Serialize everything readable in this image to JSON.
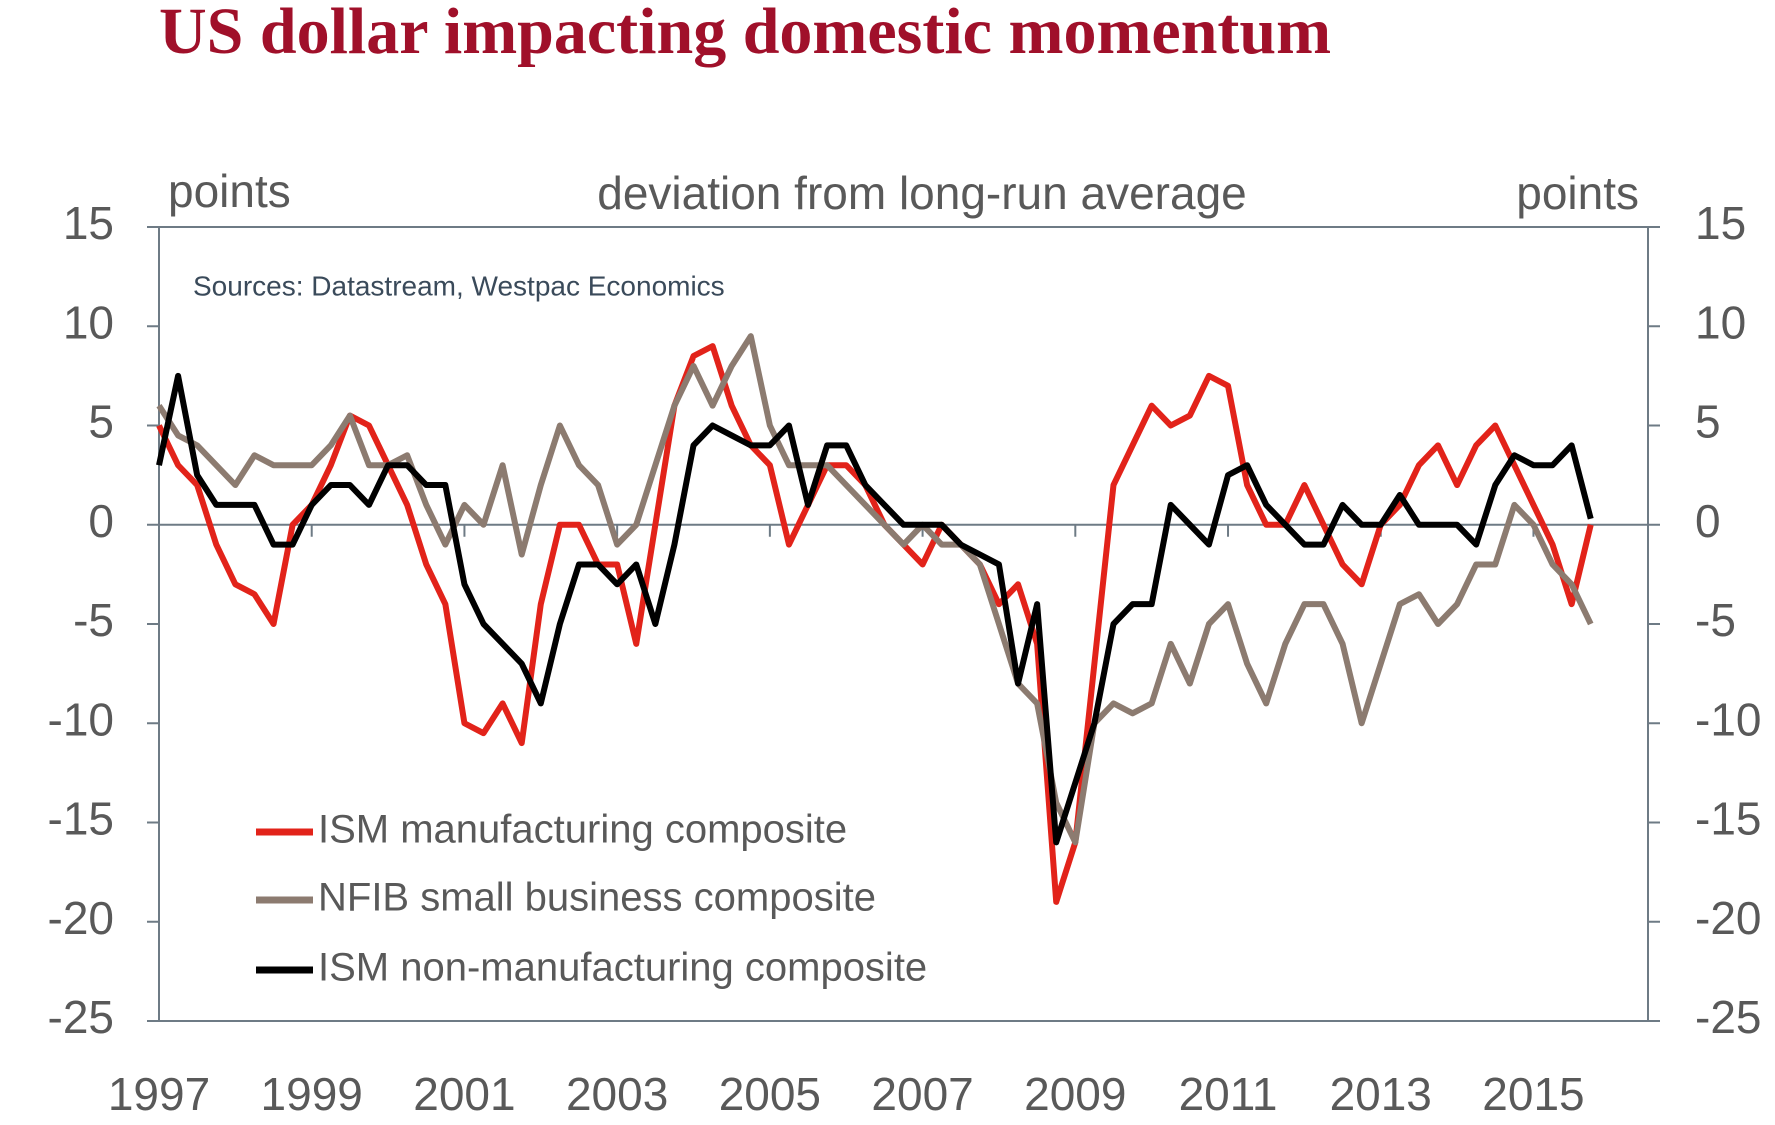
{
  "chart_data": {
    "type": "line",
    "title": "US dollar impacting domestic momentum",
    "subtitle": "deviation from long-run average",
    "y_label": "points",
    "y2_label": "points",
    "annotation": "Sources: Datastream, Westpac Economics",
    "x": [
      1997,
      1997.25,
      1997.5,
      1997.75,
      1998,
      1998.25,
      1998.5,
      1998.75,
      1999,
      1999.25,
      1999.5,
      1999.75,
      2000,
      2000.25,
      2000.5,
      2000.75,
      2001,
      2001.25,
      2001.5,
      2001.75,
      2002,
      2002.25,
      2002.5,
      2002.75,
      2003,
      2003.25,
      2003.5,
      2003.75,
      2004,
      2004.25,
      2004.5,
      2004.75,
      2005,
      2005.25,
      2005.5,
      2005.75,
      2006,
      2006.25,
      2006.5,
      2006.75,
      2007,
      2007.25,
      2007.5,
      2007.75,
      2008,
      2008.25,
      2008.5,
      2008.75,
      2009,
      2009.25,
      2009.5,
      2009.75,
      2010,
      2010.25,
      2010.5,
      2010.75,
      2011,
      2011.25,
      2011.5,
      2011.75,
      2012,
      2012.25,
      2012.5,
      2012.75,
      2013,
      2013.25,
      2013.5,
      2013.75,
      2014,
      2014.25,
      2014.5,
      2014.75,
      2015,
      2015.25,
      2015.5,
      2015.75
    ],
    "series": [
      {
        "name": "ISM manufacturing composite",
        "color": "#e2231a",
        "values": [
          5,
          3,
          2,
          -1,
          -3,
          -3.5,
          -5,
          0,
          1,
          3,
          5.5,
          5,
          3,
          1,
          -2,
          -4,
          -10,
          -10.5,
          -9,
          -11,
          -4,
          0,
          0,
          -2,
          -2,
          -6,
          0,
          6,
          8.5,
          9,
          6,
          4,
          3,
          -1,
          1,
          3,
          3,
          2,
          0,
          -1,
          -2,
          0,
          -1,
          -2,
          -4,
          -3,
          -6,
          -19,
          -16,
          -7,
          2,
          4,
          6,
          5,
          5.5,
          7.5,
          7,
          2,
          0,
          0,
          2,
          0,
          -2,
          -3,
          0,
          1,
          3,
          4,
          2,
          4,
          5,
          3,
          1,
          -1,
          -4,
          0
        ]
      },
      {
        "name": "NFIB small business composite",
        "color": "#8c7b70",
        "values": [
          6,
          4.5,
          4,
          3,
          2,
          3.5,
          3,
          3,
          3,
          4,
          5.5,
          3,
          3,
          3.5,
          1,
          -1,
          1,
          0,
          3,
          -1.5,
          2,
          5,
          3,
          2,
          -1,
          0,
          3,
          6,
          8,
          6,
          8,
          9.5,
          5,
          3,
          3,
          3,
          2,
          1,
          0,
          -1,
          0,
          -1,
          -1,
          -2,
          -5,
          -8,
          -9,
          -14,
          -16,
          -10,
          -9,
          -9.5,
          -9,
          -6,
          -8,
          -5,
          -4,
          -7,
          -9,
          -6,
          -4,
          -4,
          -6,
          -10,
          -7,
          -4,
          -3.5,
          -5,
          -4,
          -2,
          -2,
          1,
          0,
          -2,
          -3,
          -5
        ]
      },
      {
        "name": "ISM non-manufacturing composite",
        "color": "#000000",
        "values": [
          3,
          7.5,
          2.5,
          1,
          1,
          1,
          -1,
          -1,
          1,
          2,
          2,
          1,
          3,
          3,
          2,
          2,
          -3,
          -5,
          -6,
          -7,
          -9,
          -5,
          -2,
          -2,
          -3,
          -2,
          -5,
          -1,
          4,
          5,
          4.5,
          4,
          4,
          5,
          1,
          4,
          4,
          2,
          1,
          0,
          0,
          0,
          -1,
          -1.5,
          -2,
          -8,
          -4,
          -16,
          -13,
          -10,
          -5,
          -4,
          -4,
          1,
          0,
          -1,
          2.5,
          3,
          1,
          0,
          -1,
          -1,
          1,
          0,
          0,
          1.5,
          0,
          0,
          0,
          -1,
          2,
          3.5,
          3,
          3,
          4,
          0.3
        ]
      }
    ],
    "xlim": [
      1997,
      2016.5
    ],
    "xticks": [
      1997,
      1999,
      2001,
      2003,
      2005,
      2007,
      2009,
      2011,
      2013,
      2015
    ],
    "ylim": [
      -25,
      15
    ],
    "yticks": [
      15,
      10,
      5,
      0,
      -5,
      -10,
      -15,
      -20,
      -25
    ],
    "y2lim": [
      -25,
      15
    ],
    "y2ticks": [
      15,
      10,
      5,
      0,
      -5,
      -10,
      -15,
      -20,
      -25
    ],
    "legend": "lower left",
    "grid": false
  }
}
